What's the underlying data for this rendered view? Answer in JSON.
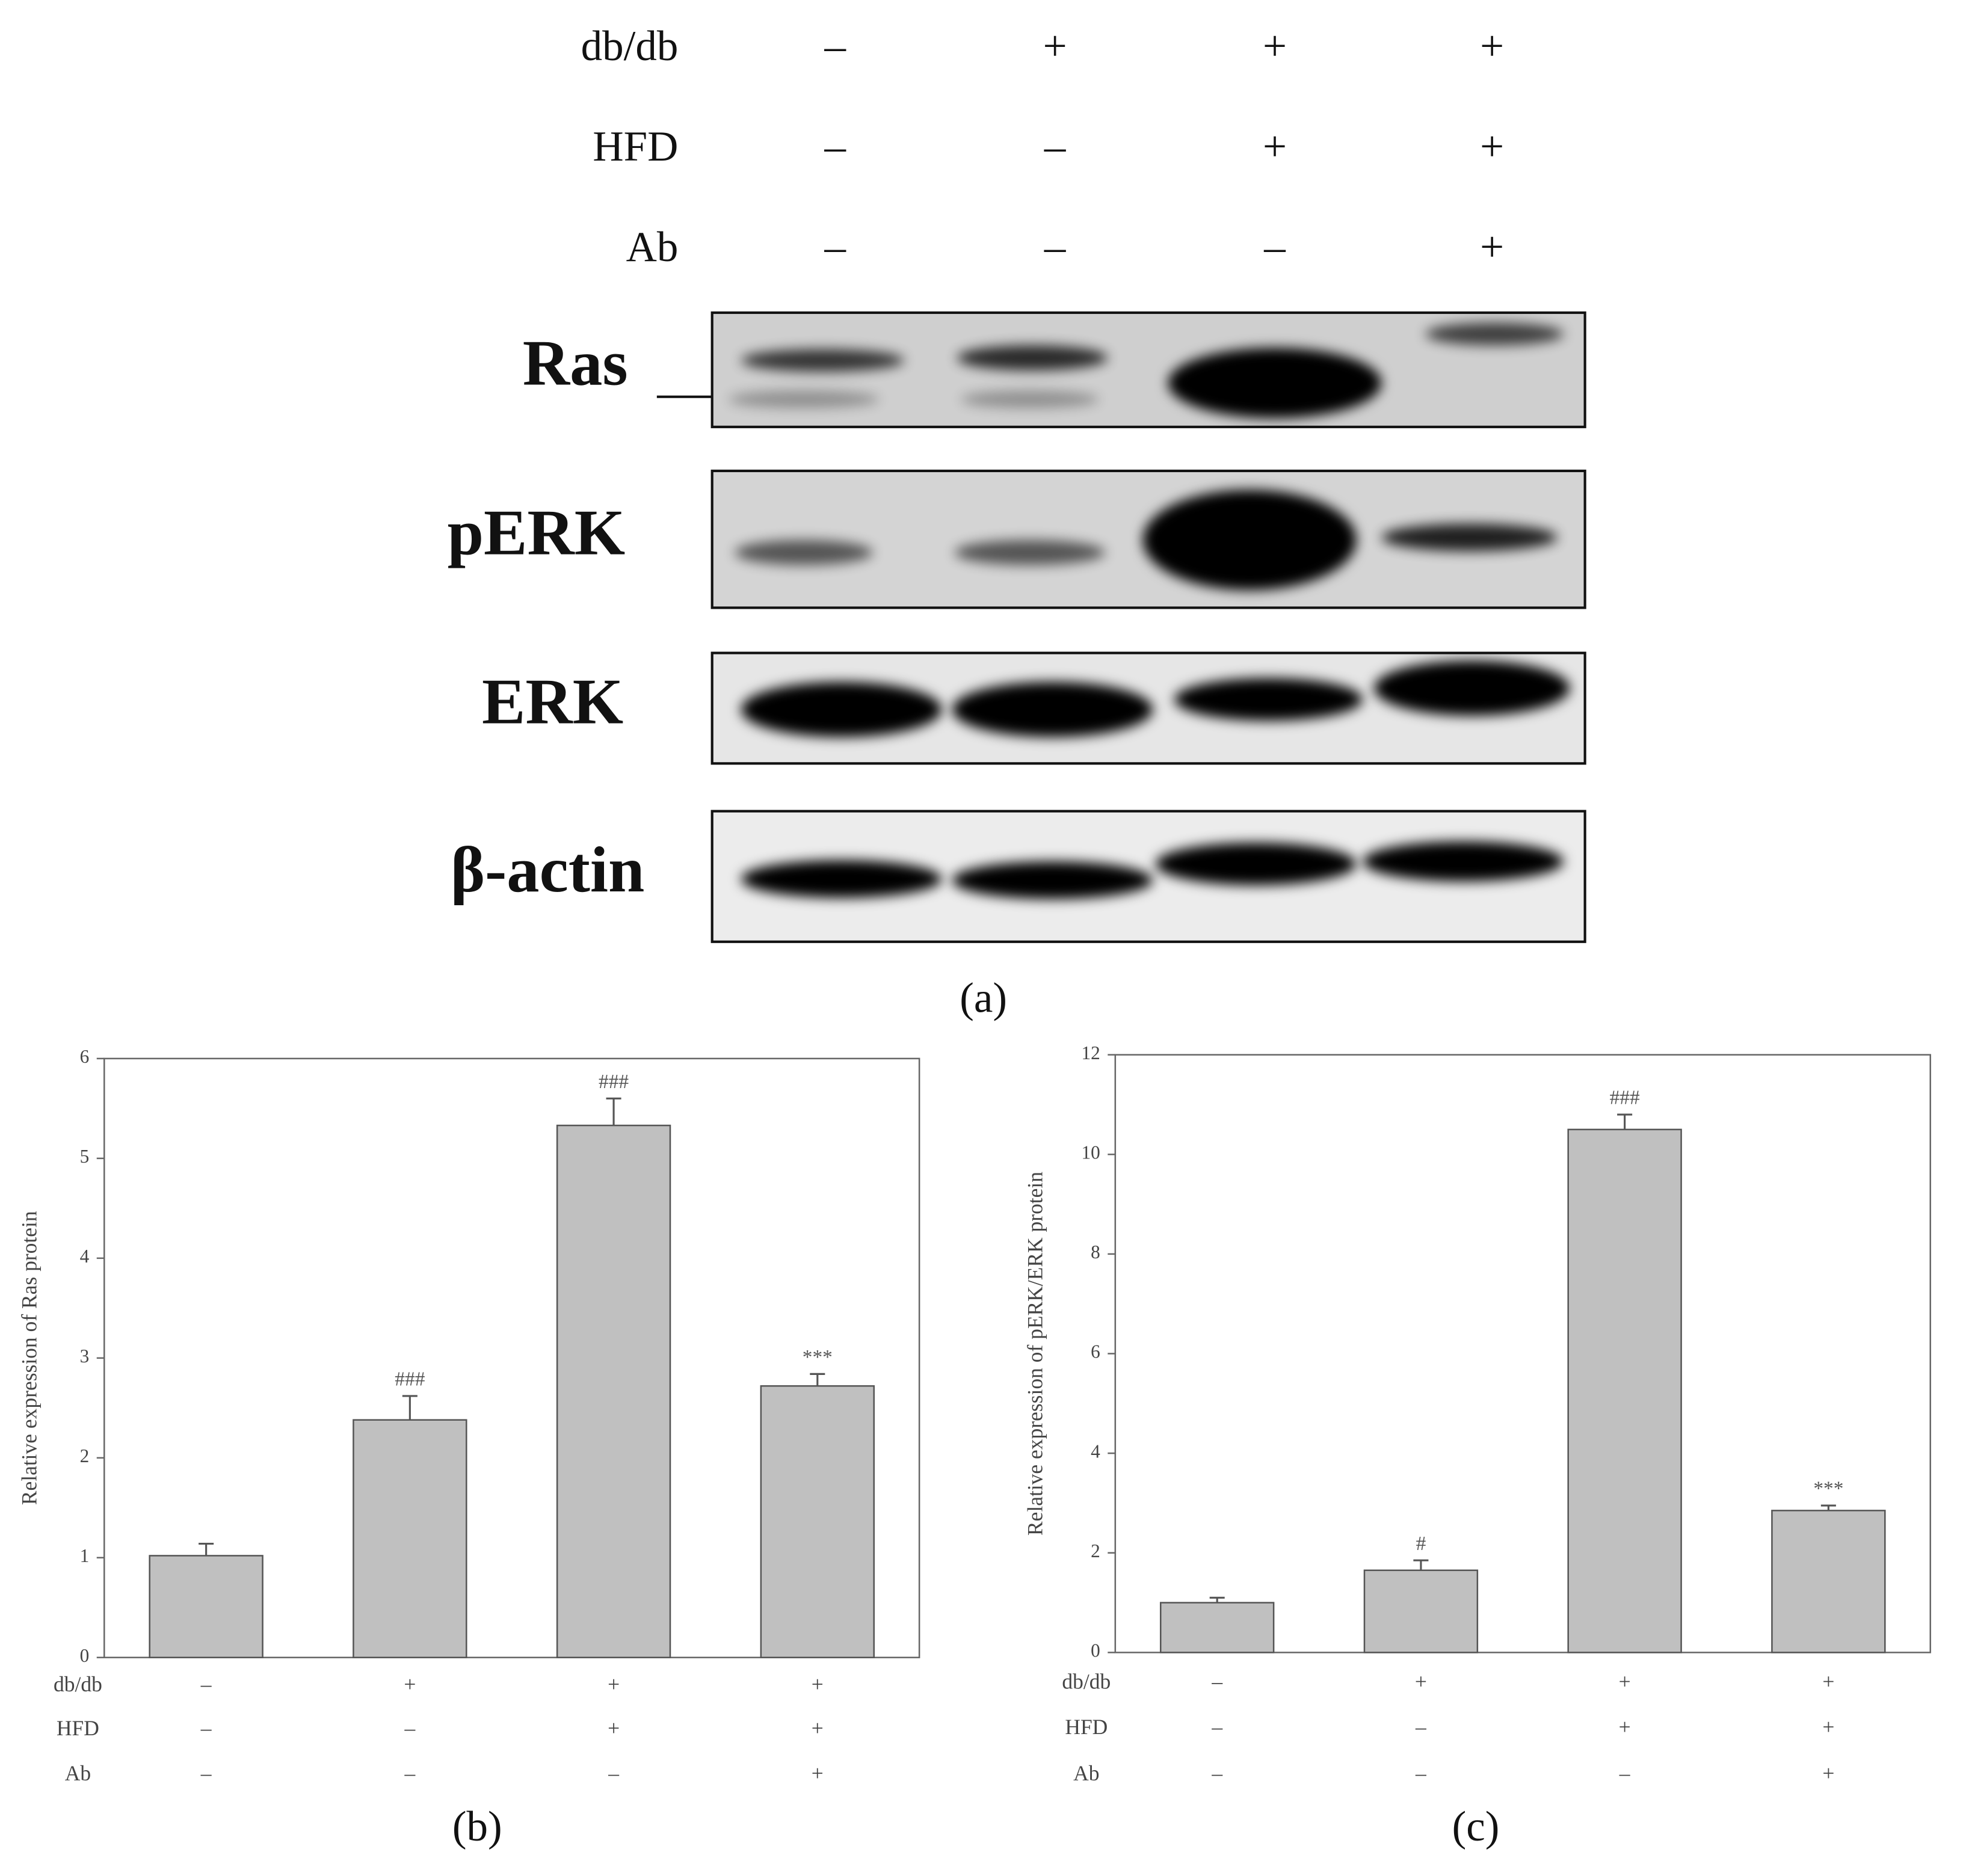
{
  "blot": {
    "rows": [
      {
        "label": "db/db",
        "signs": [
          "–",
          "+",
          "+",
          "+"
        ]
      },
      {
        "label": "HFD",
        "signs": [
          "–",
          "–",
          "+",
          "+"
        ]
      },
      {
        "label": "Ab",
        "signs": [
          "–",
          "–",
          "–",
          "+"
        ]
      }
    ],
    "proteins": [
      "Ras",
      "pERK",
      "ERK",
      "β-actin"
    ],
    "panel_label": "(a)"
  },
  "chart_data": [
    {
      "type": "bar",
      "panel_label": "(b)",
      "ylabel": "Relative expression of Ras protein",
      "categories": [
        null,
        null,
        null,
        null
      ],
      "values": [
        1.02,
        2.38,
        5.33,
        2.72
      ],
      "errors": [
        0.12,
        0.24,
        0.27,
        0.12
      ],
      "annotations": [
        null,
        "###",
        "###",
        "***"
      ],
      "color": "#c0c0c0",
      "ylim": [
        0,
        6
      ],
      "yticks": [
        0,
        1,
        2,
        3,
        4,
        5,
        6
      ],
      "treatments": [
        {
          "label": "db/db",
          "signs": [
            "–",
            "+",
            "+",
            "+"
          ]
        },
        {
          "label": "HFD",
          "signs": [
            "–",
            "–",
            "+",
            "+"
          ]
        },
        {
          "label": "Ab",
          "signs": [
            "–",
            "–",
            "–",
            "+"
          ]
        }
      ]
    },
    {
      "type": "bar",
      "panel_label": "(c)",
      "ylabel": "Relative expression of pERK/ERK protein",
      "categories": [
        null,
        null,
        null,
        null
      ],
      "values": [
        1.0,
        1.65,
        10.5,
        2.85
      ],
      "errors": [
        0.1,
        0.2,
        0.3,
        0.1
      ],
      "annotations": [
        null,
        "#",
        "###",
        "***"
      ],
      "color": "#c0c0c0",
      "ylim": [
        0,
        12
      ],
      "yticks": [
        0,
        2,
        4,
        6,
        8,
        10,
        12
      ],
      "treatments": [
        {
          "label": "db/db",
          "signs": [
            "–",
            "+",
            "+",
            "+"
          ]
        },
        {
          "label": "HFD",
          "signs": [
            "–",
            "–",
            "+",
            "+"
          ]
        },
        {
          "label": "Ab",
          "signs": [
            "–",
            "–",
            "–",
            "+"
          ]
        }
      ]
    }
  ]
}
